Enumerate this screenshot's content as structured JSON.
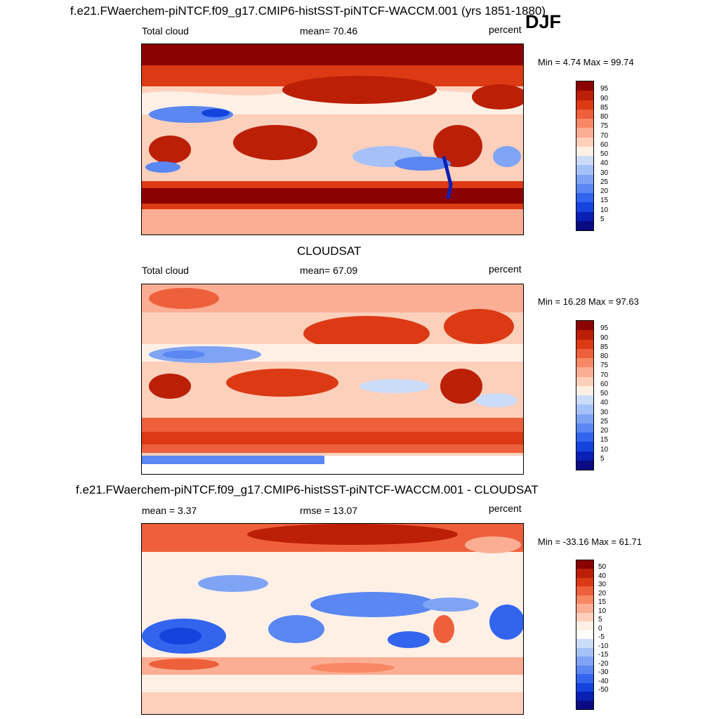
{
  "season": "DJF",
  "colors": {
    "abs_scale": [
      "#0a0a82",
      "#0a1fb4",
      "#1444dc",
      "#3264ee",
      "#5a87f2",
      "#7fa4f5",
      "#a5c1f7",
      "#cadcf8",
      "#fff0e6",
      "#fdd0bc",
      "#fbae93",
      "#f88865",
      "#ee5f3b",
      "#dc3a14",
      "#bb1f05",
      "#8b0000"
    ],
    "diff_scale": [
      "#0a0a82",
      "#0a1fb4",
      "#1444dc",
      "#3264ee",
      "#5a87f2",
      "#7fa4f5",
      "#a5c1f7",
      "#cadcf8",
      "#ffffff",
      "#fff0e6",
      "#fdd0bc",
      "#fbae93",
      "#f88865",
      "#ee5f3b",
      "#dc3a14",
      "#bb1f05",
      "#8b0000"
    ]
  },
  "panels": [
    {
      "title": "f.e21.FWaerchem-piNTCF.f09_g17.CMIP6-histSST-piNTCF-WACCM.001 (yrs 1851-1880)",
      "left_label": "Total cloud",
      "center_label": "mean=  70.46",
      "right_label": "percent",
      "minmax": "Min =   4.74 Max =  99.74",
      "ticks": [
        "95",
        "90",
        "85",
        "80",
        "75",
        "70",
        "60",
        "50",
        "40",
        "30",
        "25",
        "20",
        "15",
        "10",
        "5"
      ]
    },
    {
      "title": "CLOUDSAT",
      "left_label": "Total cloud",
      "center_label": "mean=  67.09",
      "right_label": "percent",
      "minmax": "Min =  16.28 Max =  97.63",
      "ticks": [
        "95",
        "90",
        "85",
        "80",
        "75",
        "70",
        "60",
        "50",
        "40",
        "30",
        "25",
        "20",
        "15",
        "10",
        "5"
      ]
    },
    {
      "title": "f.e21.FWaerchem-piNTCF.f09_g17.CMIP6-histSST-piNTCF-WACCM.001 - CLOUDSAT",
      "left_label": "mean =   3.37",
      "center_label": "rmse =  13.07",
      "right_label": "percent",
      "minmax": "Min = -33.16 Max =  61.71",
      "ticks": [
        "50",
        "40",
        "30",
        "20",
        "15",
        "10",
        "5",
        "0",
        "-5",
        "-10",
        "-15",
        "-20",
        "-30",
        "-40",
        "-50"
      ]
    }
  ]
}
